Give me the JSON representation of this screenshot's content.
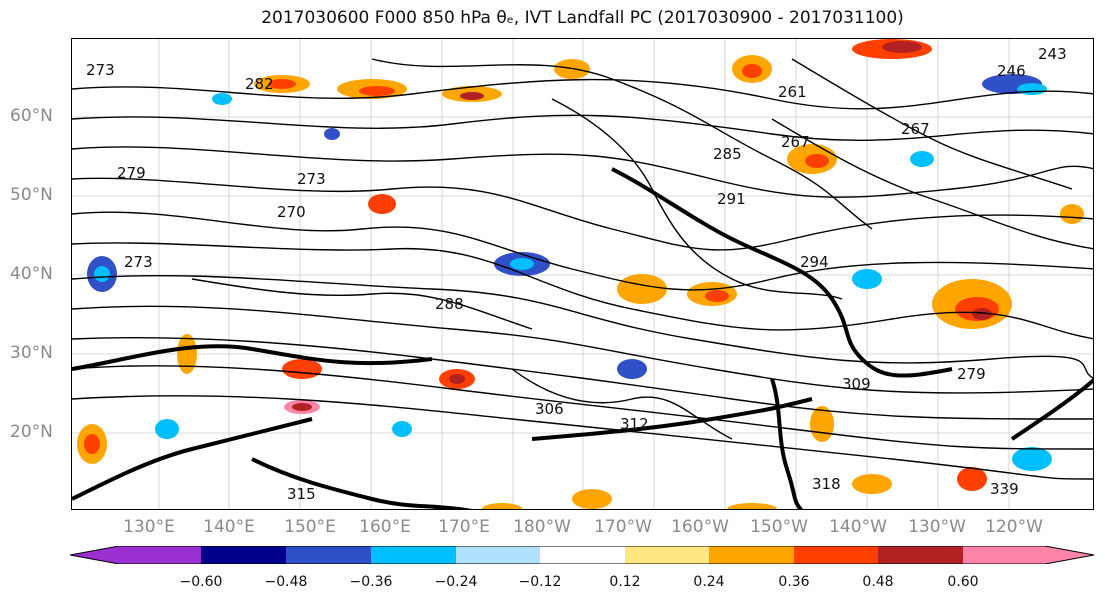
{
  "title": "2017030600 F000 850 hPa θₑ, IVT Landfall PC (2017030900 - 2017031100)",
  "lat_labels": [
    "60°N",
    "50°N",
    "40°N",
    "30°N",
    "20°N"
  ],
  "lon_labels": [
    "130°E",
    "140°E",
    "150°E",
    "160°E",
    "170°E",
    "180°W",
    "170°W",
    "160°W",
    "150°W",
    "140°W",
    "130°W",
    "120°W"
  ],
  "contour_labels": [
    "273",
    "282",
    "279",
    "267",
    "273",
    "270",
    "273",
    "288",
    "285",
    "291",
    "294",
    "261",
    "267",
    "246",
    "243",
    "279",
    "339",
    "315",
    "306",
    "309",
    "312",
    "318"
  ],
  "colorbar": {
    "ticks": [
      "−0.60",
      "−0.48",
      "−0.36",
      "−0.24",
      "−0.12",
      "0.12",
      "0.24",
      "0.36",
      "0.48",
      "0.60"
    ],
    "colors": [
      "#9b30d0",
      "#00008b",
      "#3050c8",
      "#00bfff",
      "#b0e2ff",
      "#ffffff",
      "#ffe680",
      "#ffa500",
      "#ff4000",
      "#b22222",
      "#ff85a8"
    ]
  }
}
